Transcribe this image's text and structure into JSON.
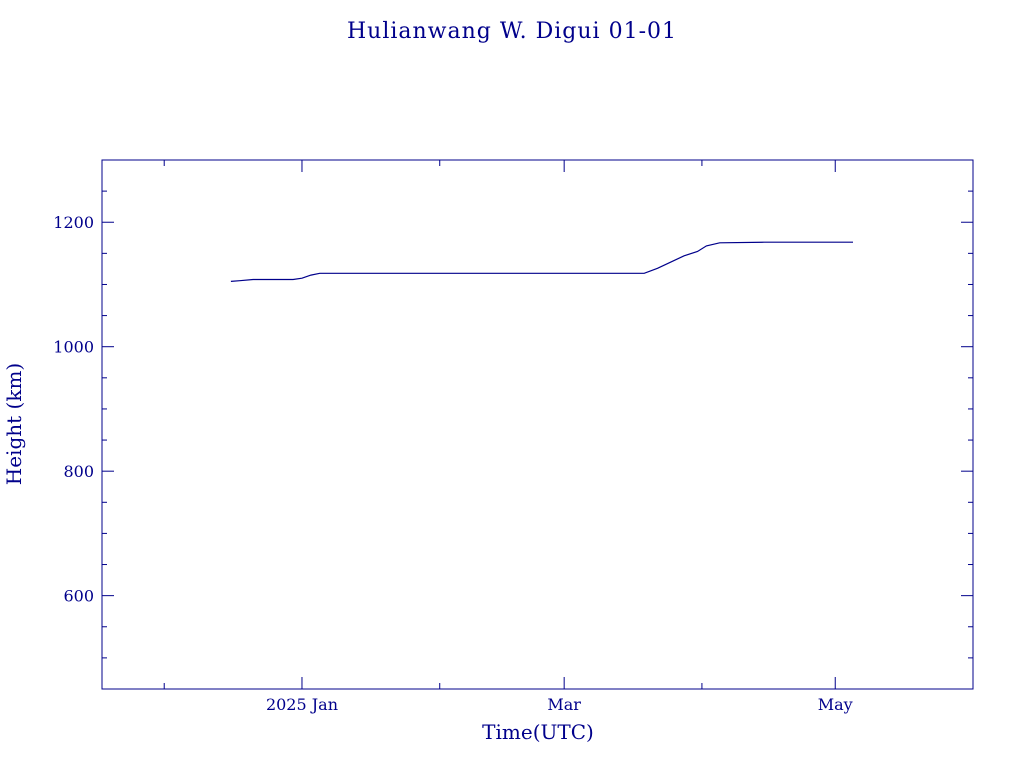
{
  "chart_data": {
    "type": "line",
    "title": "Hulianwang W. Digui 01-01",
    "xlabel": "Time(UTC)",
    "ylabel": "Height (km)",
    "x_ticks": [
      {
        "date": "2025-01-01",
        "label": "2025 Jan"
      },
      {
        "date": "2025-03-01",
        "label": "Mar"
      },
      {
        "date": "2025-05-01",
        "label": "May"
      }
    ],
    "x_minor_ticks": [
      "2024-12-01",
      "2025-02-01",
      "2025-04-01",
      "2025-06-01"
    ],
    "xlim": [
      "2024-11-17",
      "2025-06-01"
    ],
    "y_ticks": [
      600,
      800,
      1000,
      1200
    ],
    "ylim": [
      450,
      1300
    ],
    "y_minor_step": 50,
    "grid": false,
    "color": "#00008b",
    "series": [
      {
        "x": [
          "2024-12-16",
          "2024-12-18",
          "2024-12-21",
          "2024-12-24",
          "2024-12-27",
          "2024-12-30",
          "2025-01-01",
          "2025-01-03",
          "2025-01-05",
          "2025-01-20",
          "2025-02-10",
          "2025-02-25",
          "2025-03-10",
          "2025-03-19",
          "2025-03-22",
          "2025-03-25",
          "2025-03-28",
          "2025-03-31",
          "2025-04-02",
          "2025-04-05",
          "2025-04-15",
          "2025-04-25",
          "2025-05-03",
          "2025-05-05"
        ],
        "y": [
          1105,
          1106,
          1108,
          1108,
          1108,
          1108,
          1110,
          1115,
          1118,
          1118,
          1118,
          1118,
          1118,
          1118,
          1126,
          1136,
          1146,
          1153,
          1162,
          1167,
          1168,
          1168,
          1168,
          1168
        ]
      }
    ]
  }
}
